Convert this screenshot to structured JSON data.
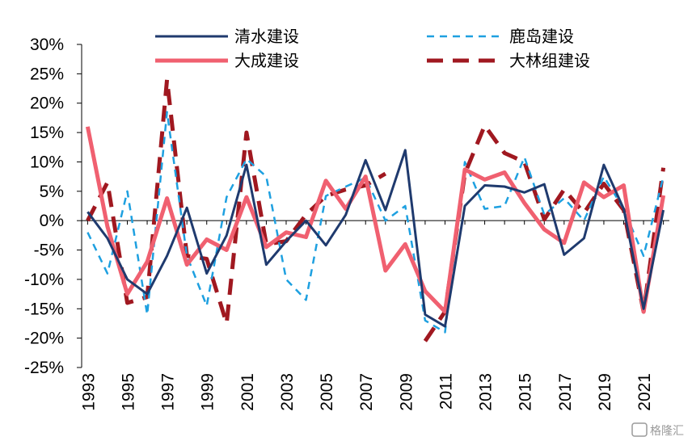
{
  "chart_data": {
    "type": "line",
    "x": [
      1993,
      1994,
      1995,
      1996,
      1997,
      1998,
      1999,
      2000,
      2001,
      2002,
      2003,
      2004,
      2005,
      2006,
      2007,
      2008,
      2009,
      2010,
      2011,
      2012,
      2013,
      2014,
      2015,
      2016,
      2017,
      2018,
      2019,
      2020,
      2021,
      2022
    ],
    "x_tick_labels": [
      "1993",
      "1995",
      "1997",
      "1999",
      "2001",
      "2003",
      "2005",
      "2007",
      "2009",
      "2011",
      "2013",
      "2015",
      "2017",
      "2019",
      "2021"
    ],
    "y_tick_labels": [
      "30%",
      "25%",
      "20%",
      "15%",
      "10%",
      "5%",
      "0%",
      "-5%",
      "-10%",
      "-15%",
      "-20%",
      "-25%"
    ],
    "ylim": [
      -25,
      30
    ],
    "y_unit": "%",
    "legend_position": "top",
    "series": [
      {
        "name": "清水建设",
        "color": "#1f3a6e",
        "dash": "solid",
        "width": 3,
        "values": [
          1.5,
          -3,
          -10,
          -12.5,
          -6,
          2.2,
          -9,
          -2.5,
          9.5,
          -7.5,
          -3.5,
          0,
          -4.2,
          1,
          10.3,
          1.8,
          12,
          -16,
          -18,
          2.5,
          6,
          5.8,
          4.8,
          6.2,
          -5.8,
          -3,
          9.5,
          2,
          -15,
          1.8
        ]
      },
      {
        "name": "鹿岛建设",
        "color": "#1ea0e0",
        "dash": "9,7",
        "width": 2.5,
        "values": [
          -2,
          -9,
          5,
          -16,
          18.5,
          -6,
          -14.5,
          4,
          10.5,
          7.5,
          -10,
          -13.5,
          4.2,
          5.8,
          7.3,
          0,
          2.5,
          -17,
          -19,
          10,
          2,
          2.5,
          10.8,
          1,
          3.8,
          0,
          7.5,
          2,
          -6,
          7.5
        ]
      },
      {
        "name": "大成建设",
        "color": "#f06070",
        "dash": "solid",
        "width": 5,
        "values": [
          16,
          -1,
          -12.5,
          -7,
          3.8,
          -7.5,
          -3.2,
          -5,
          4,
          -4.5,
          -2,
          -2.8,
          6.8,
          2,
          7.5,
          -8.5,
          -4,
          -12,
          -15.5,
          8.7,
          7,
          8.2,
          3,
          -1.5,
          -3.8,
          6.5,
          4,
          6,
          -15.5,
          4.3
        ]
      },
      {
        "name": "大林组建设",
        "color": "#a01820",
        "dash": "20,12",
        "width": 5,
        "values": [
          0,
          6.5,
          -14,
          -13,
          24,
          -6,
          -6.5,
          -17.5,
          15,
          -4,
          -3.5,
          1,
          4.2,
          5.3,
          6,
          8,
          null,
          -20.5,
          -15.5,
          8,
          16.2,
          11.5,
          10,
          0.2,
          5.3,
          1.3,
          6.3,
          1.8,
          -15.5,
          9
        ]
      }
    ]
  },
  "watermark": "格隆汇"
}
